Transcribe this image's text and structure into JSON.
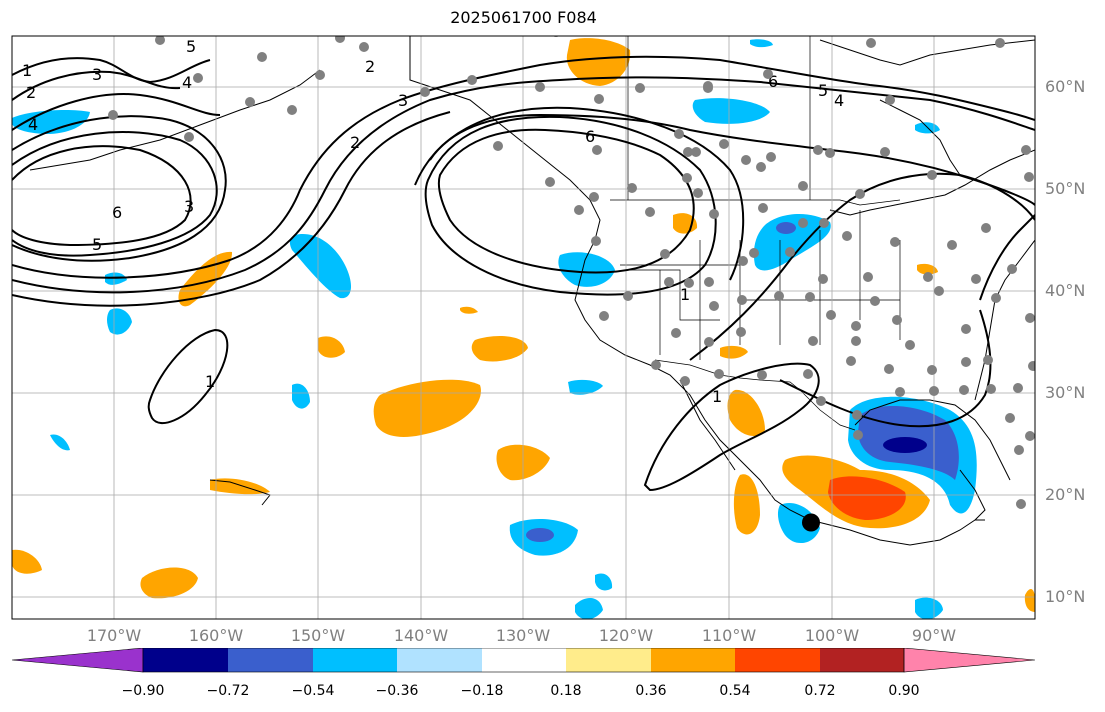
{
  "title": "2025061700 F084",
  "map": {
    "lat_labels": [
      {
        "label": "60°N",
        "lat": 60
      },
      {
        "label": "50°N",
        "lat": 50
      },
      {
        "label": "40°N",
        "lat": 40
      },
      {
        "label": "30°N",
        "lat": 30
      },
      {
        "label": "20°N",
        "lat": 20
      },
      {
        "label": "10°N",
        "lat": 10
      }
    ],
    "lon_labels": [
      {
        "label": "170°W",
        "lon": -170
      },
      {
        "label": "160°W",
        "lon": -160
      },
      {
        "label": "150°W",
        "lon": -150
      },
      {
        "label": "140°W",
        "lon": -140
      },
      {
        "label": "130°W",
        "lon": -130
      },
      {
        "label": "120°W",
        "lon": -120
      },
      {
        "label": "110°W",
        "lon": -110
      },
      {
        "label": "100°W",
        "lon": -100
      },
      {
        "label": "90°W",
        "lon": -90
      }
    ],
    "contour_labels": [
      "1",
      "2",
      "3",
      "4",
      "5",
      "6"
    ],
    "marker": {
      "lon": -102,
      "lat": 17.3
    }
  },
  "colorbar": {
    "colors": [
      "#9a32cd",
      "#00008b",
      "#3a5fcd",
      "#00bfff",
      "#b0e2ff",
      "#ffffff",
      "#ffec8b",
      "#ffa500",
      "#ff4500",
      "#b22222",
      "#ff83ab"
    ],
    "labels": [
      "−0.90",
      "−0.72",
      "−0.54",
      "−0.36",
      "−0.18",
      "0.18",
      "0.36",
      "0.54",
      "0.72",
      "0.90"
    ]
  }
}
